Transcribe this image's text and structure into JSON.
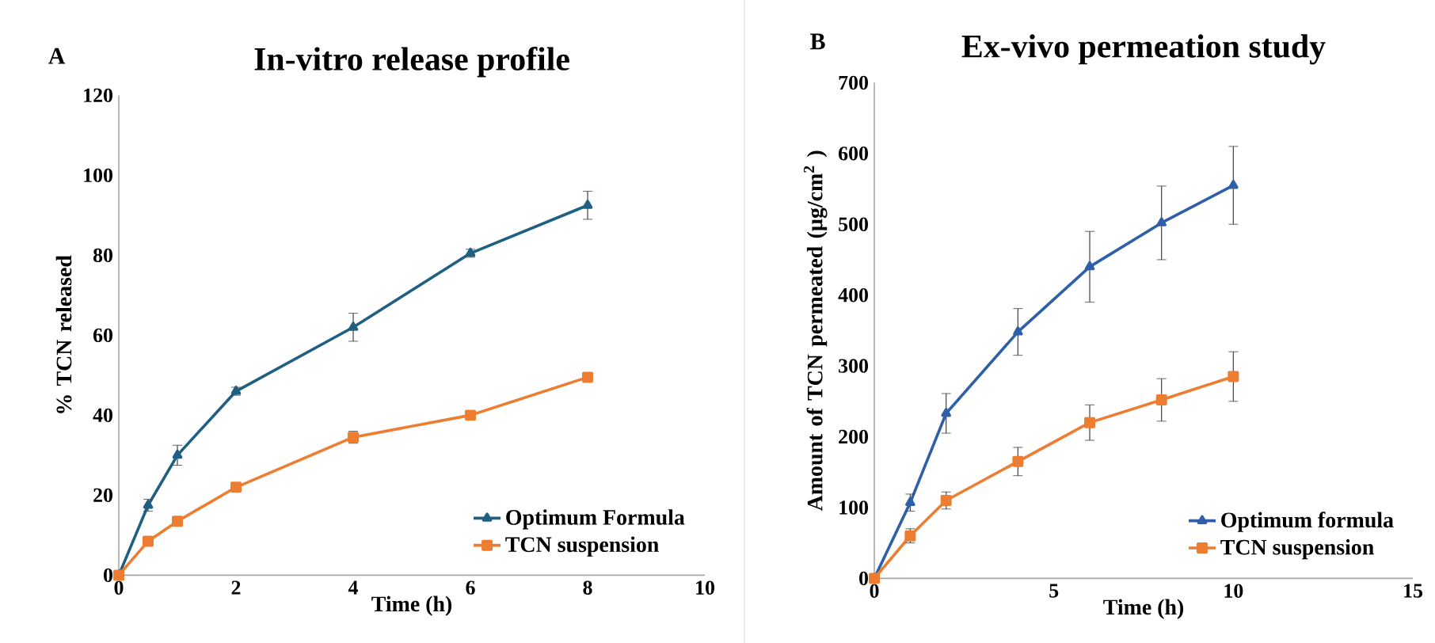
{
  "chart_data": [
    {
      "type": "line",
      "title": "In-vitro release profile",
      "annotations": [
        "A"
      ],
      "xlabel": "Time (h)",
      "ylabel": "% TCN released",
      "x": [
        0,
        0.5,
        1,
        2,
        4,
        6,
        8
      ],
      "xlim": [
        0,
        10
      ],
      "xticks": [
        0,
        2,
        4,
        6,
        8,
        10
      ],
      "ylim": [
        0,
        120
      ],
      "yticks": [
        0,
        20,
        40,
        60,
        80,
        100,
        120
      ],
      "grid": false,
      "legend": "bottom right",
      "series": [
        {
          "name": "Optimum Formula",
          "color": "#1f5f82",
          "marker": "triangle",
          "values": [
            0,
            17.5,
            30,
            46,
            62,
            80.5,
            92.5
          ],
          "errors": [
            null,
            1.5,
            2.5,
            1,
            3.5,
            1,
            3.5
          ]
        },
        {
          "name": "TCN suspension",
          "color": "#ed7d31",
          "marker": "square",
          "values": [
            0,
            8.5,
            13.5,
            22,
            34.5,
            40,
            49.5
          ],
          "errors": [
            null,
            null,
            null,
            null,
            1.5,
            null,
            null
          ]
        }
      ]
    },
    {
      "type": "line",
      "title": "Ex-vivo permeation study",
      "annotations": [
        "B"
      ],
      "xlabel": "Time (h)",
      "ylabel": "Amount of TCN permeated (µg/cm$^{2}$ )",
      "x": [
        0,
        1,
        2,
        4,
        6,
        8,
        10
      ],
      "xlim": [
        0,
        15
      ],
      "xticks": [
        0,
        5,
        10,
        15
      ],
      "ylim": [
        0,
        700
      ],
      "yticks": [
        0,
        100,
        200,
        300,
        400,
        500,
        600,
        700
      ],
      "grid": false,
      "legend": "bottom right",
      "series": [
        {
          "name": "Optimum formula",
          "color": "#2e5fa8",
          "marker": "triangle",
          "values": [
            0,
            107,
            233,
            348,
            440,
            502,
            555
          ],
          "errors": [
            null,
            12,
            28,
            33,
            50,
            52,
            55
          ]
        },
        {
          "name": "TCN suspension",
          "color": "#ed7d31",
          "marker": "square",
          "values": [
            0,
            60,
            110,
            165,
            220,
            252,
            285
          ],
          "errors": [
            null,
            10,
            12,
            20,
            25,
            30,
            35
          ]
        }
      ]
    }
  ]
}
